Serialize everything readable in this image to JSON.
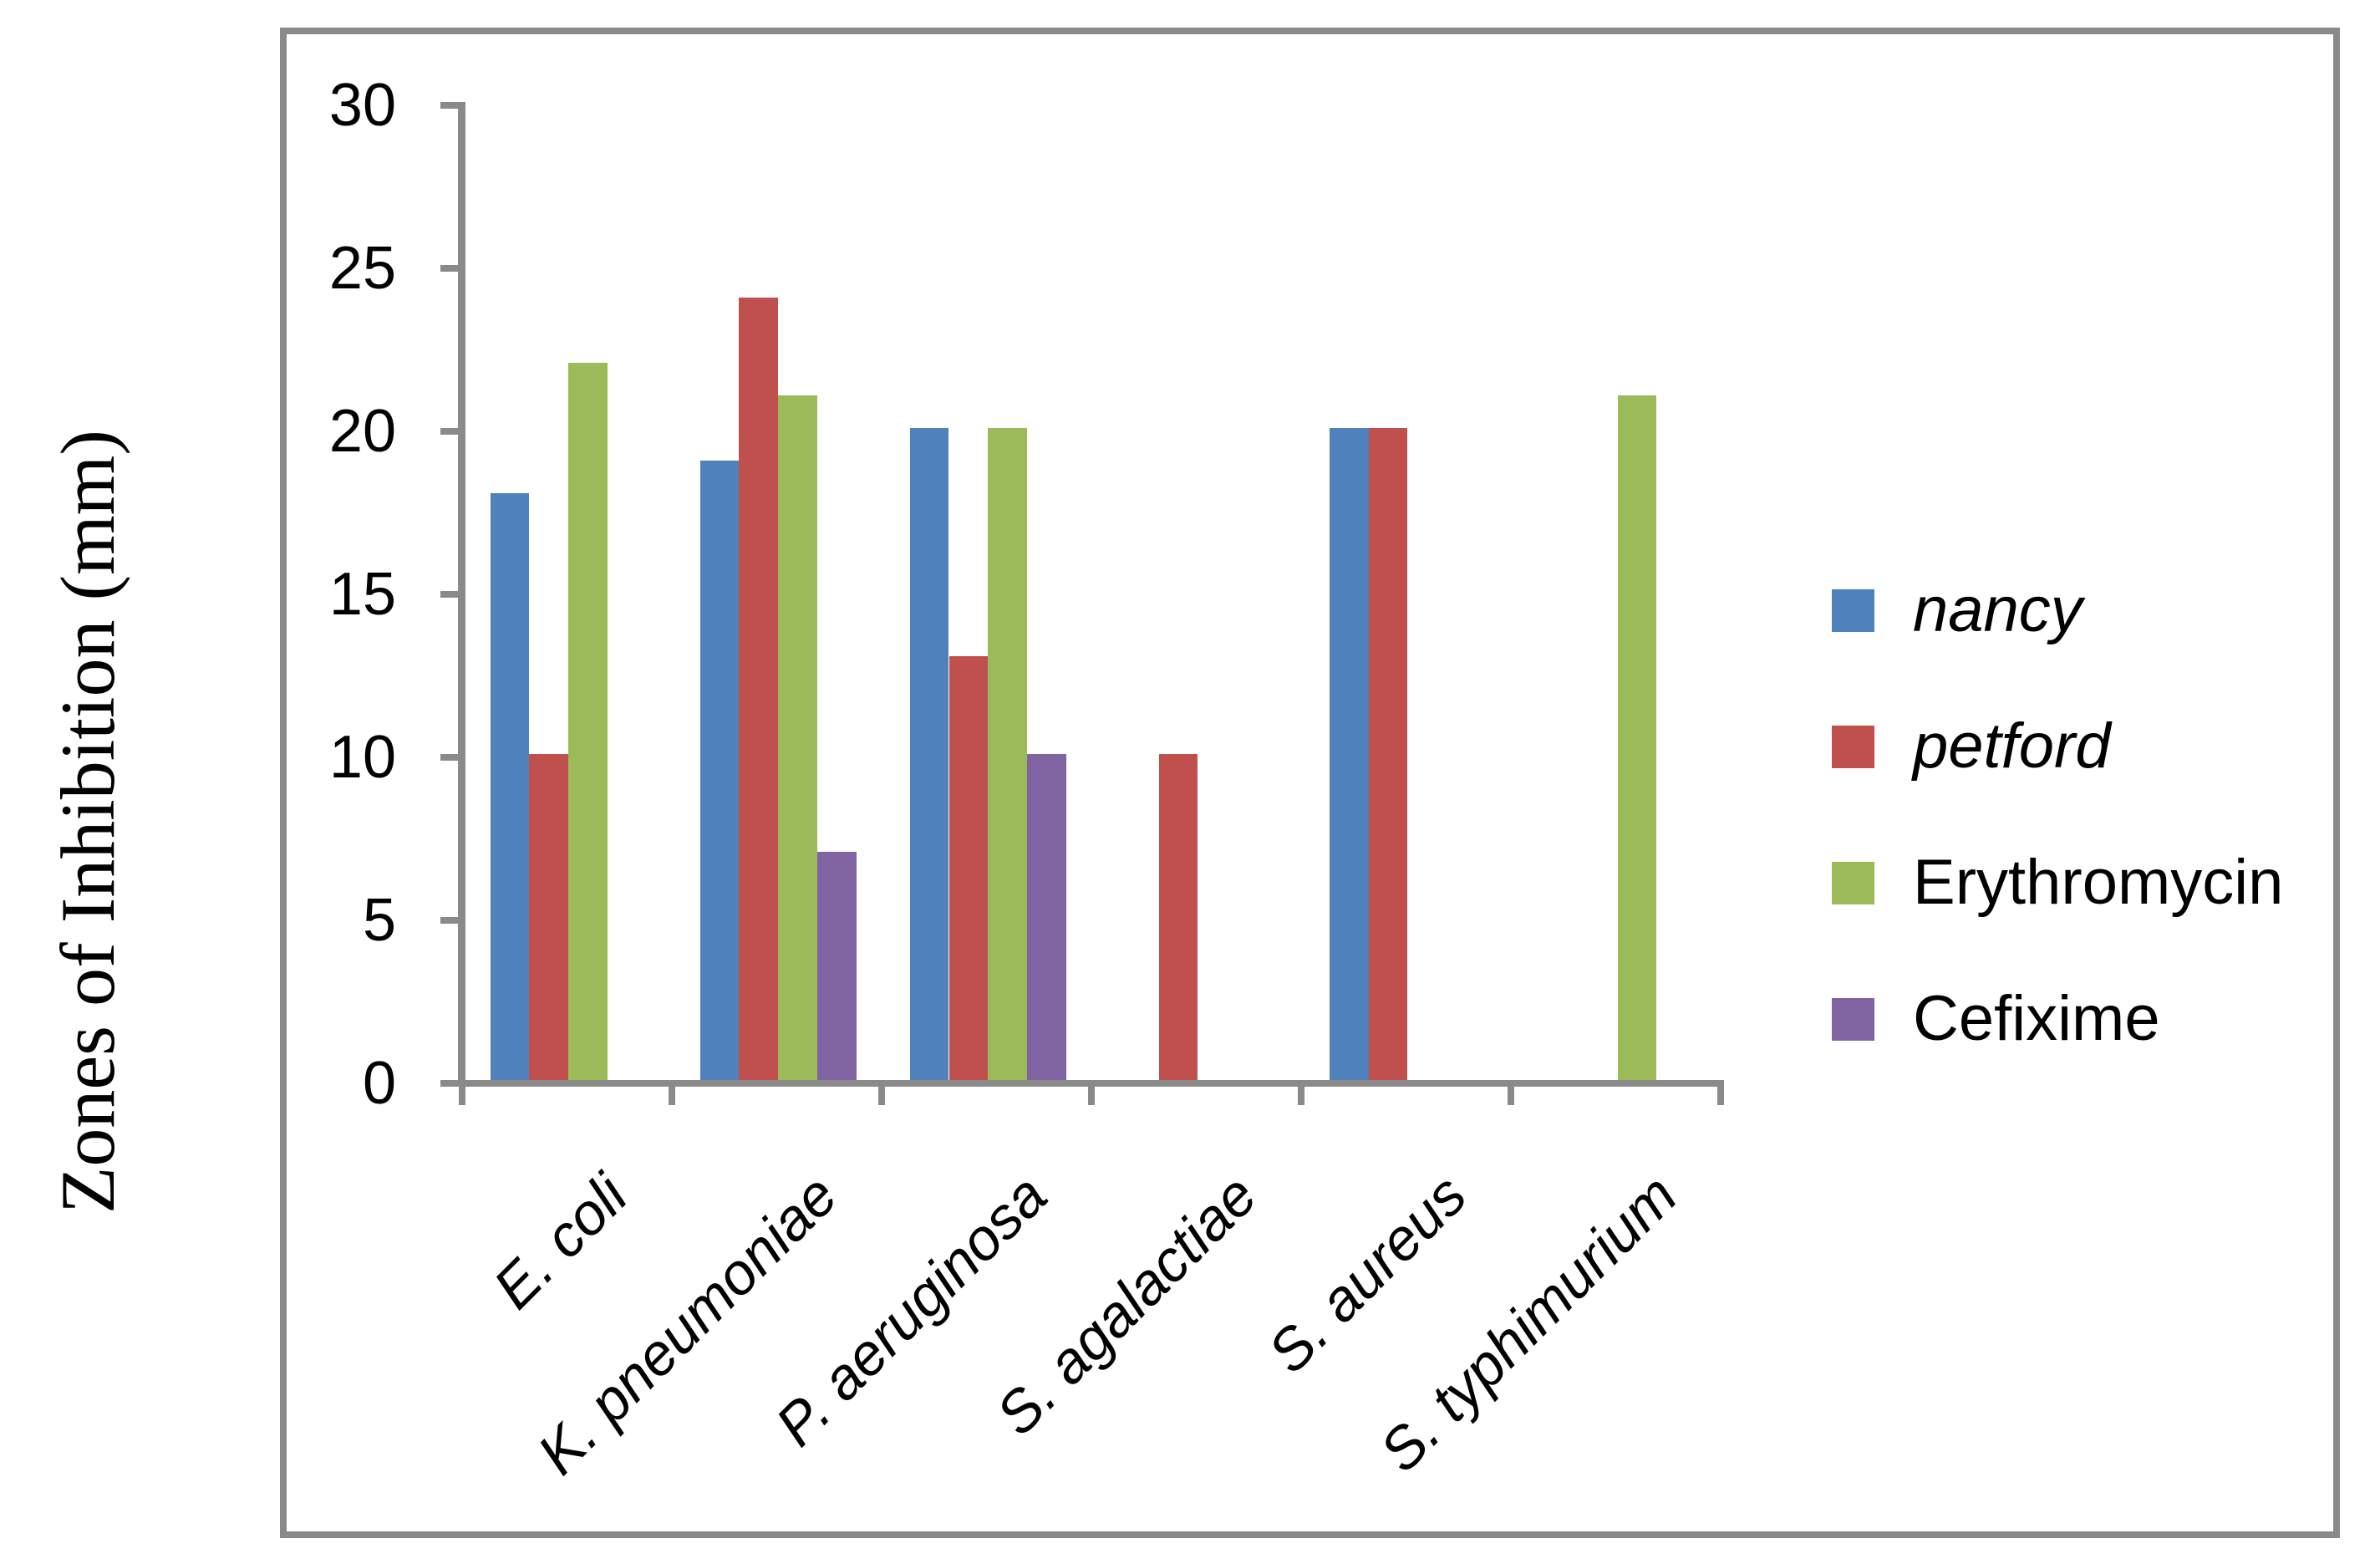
{
  "chart_data": {
    "type": "bar",
    "title": "",
    "xlabel": "",
    "ylabel": "Zones of Inhibition (mm)",
    "ylim": [
      0,
      30
    ],
    "yticks": [
      0,
      5,
      10,
      15,
      20,
      25,
      30
    ],
    "grid": false,
    "legend_position": "right",
    "categories": [
      "E. coli",
      "K. pneumoniae",
      "P. aeruginosa",
      "S. agalactiae",
      "S. aureus",
      "S. typhimurium"
    ],
    "series": [
      {
        "name": "nancy",
        "italic": true,
        "color": "#4F81BD",
        "values": [
          18,
          19,
          20,
          0,
          20,
          0
        ]
      },
      {
        "name": "petford",
        "italic": true,
        "color": "#C0504D",
        "values": [
          10,
          24,
          13,
          10,
          20,
          0
        ]
      },
      {
        "name": "Erythromycin",
        "italic": false,
        "color": "#9BBB59",
        "values": [
          22,
          21,
          20,
          0,
          0,
          21
        ]
      },
      {
        "name": "Cefixime",
        "italic": false,
        "color": "#8064A2",
        "values": [
          0,
          7,
          10,
          0,
          0,
          0
        ]
      }
    ],
    "axis_color": "#8A8A8A"
  }
}
